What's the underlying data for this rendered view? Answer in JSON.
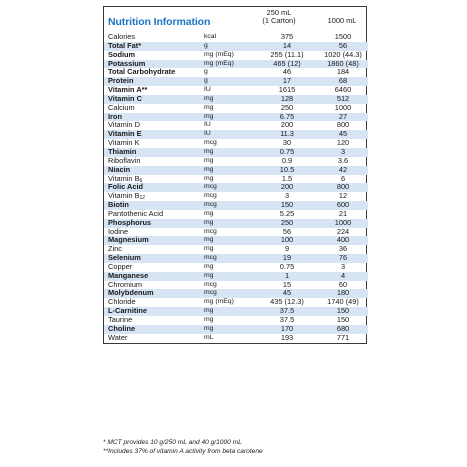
{
  "title": "Nutrition Information",
  "col1_header_line1": "250 mL",
  "col1_header_line2": "(1 Carton)",
  "col2_header": "1000 mL",
  "rows": [
    {
      "name": "Calories",
      "unit": "kcal",
      "v1": "375",
      "v2": "1500",
      "bold": false
    },
    {
      "name": "Total Fat*",
      "unit": "g",
      "v1": "14",
      "v2": "56",
      "bold": true
    },
    {
      "name": "Sodium",
      "unit": "mg (mEq)",
      "v1": "255 (11.1)",
      "v2": "1020 (44.3)",
      "bold": true
    },
    {
      "name": "Potassium",
      "unit": "mg (mEq)",
      "v1": "465 (12)",
      "v2": "1860 (48)",
      "bold": true
    },
    {
      "name": "Total Carbohydrate",
      "unit": "g",
      "v1": "46",
      "v2": "184",
      "bold": true
    },
    {
      "name": "Protein",
      "unit": "g",
      "v1": "17",
      "v2": "68",
      "bold": true
    },
    {
      "name": "Vitamin A**",
      "unit": "IU",
      "v1": "1615",
      "v2": "6460",
      "bold": true
    },
    {
      "name": "Vitamin C",
      "unit": "mg",
      "v1": "128",
      "v2": "512",
      "bold": true
    },
    {
      "name": "Calcium",
      "unit": "mg",
      "v1": "250",
      "v2": "1000",
      "bold": false
    },
    {
      "name": "Iron",
      "unit": "mg",
      "v1": "6.75",
      "v2": "27",
      "bold": true
    },
    {
      "name": "Vitamin D",
      "unit": "IU",
      "v1": "200",
      "v2": "800",
      "bold": false
    },
    {
      "name": "Vitamin E",
      "unit": "IU",
      "v1": "11.3",
      "v2": "45",
      "bold": true
    },
    {
      "name": "Vitamin K",
      "unit": "mcg",
      "v1": "30",
      "v2": "120",
      "bold": false
    },
    {
      "name": "Thiamin",
      "unit": "mg",
      "v1": "0.75",
      "v2": "3",
      "bold": true
    },
    {
      "name": "Riboflavin",
      "unit": "mg",
      "v1": "0.9",
      "v2": "3.6",
      "bold": false
    },
    {
      "name": "Niacin",
      "unit": "mg",
      "v1": "10.5",
      "v2": "42",
      "bold": true
    },
    {
      "name": "Vitamin B",
      "sub": "6",
      "unit": "mg",
      "v1": "1.5",
      "v2": "6",
      "bold": false
    },
    {
      "name": "Folic Acid",
      "unit": "mcg",
      "v1": "200",
      "v2": "800",
      "bold": true
    },
    {
      "name": "Vitamin B",
      "sub": "12",
      "unit": "mcg",
      "v1": "3",
      "v2": "12",
      "bold": false
    },
    {
      "name": "Biotin",
      "unit": "mcg",
      "v1": "150",
      "v2": "600",
      "bold": true
    },
    {
      "name": "Pantothenic Acid",
      "unit": "mg",
      "v1": "5.25",
      "v2": "21",
      "bold": false
    },
    {
      "name": "Phosphorus",
      "unit": "mg",
      "v1": "250",
      "v2": "1000",
      "bold": true
    },
    {
      "name": "Iodine",
      "unit": "mcg",
      "v1": "56",
      "v2": "224",
      "bold": false
    },
    {
      "name": "Magnesium",
      "unit": "mg",
      "v1": "100",
      "v2": "400",
      "bold": true
    },
    {
      "name": "Zinc",
      "unit": "mg",
      "v1": "9",
      "v2": "36",
      "bold": false
    },
    {
      "name": "Selenium",
      "unit": "mcg",
      "v1": "19",
      "v2": "76",
      "bold": true
    },
    {
      "name": "Copper",
      "unit": "mg",
      "v1": "0.75",
      "v2": "3",
      "bold": false
    },
    {
      "name": "Manganese",
      "unit": "mg",
      "v1": "1",
      "v2": "4",
      "bold": true
    },
    {
      "name": "Chromium",
      "unit": "mcg",
      "v1": "15",
      "v2": "60",
      "bold": false
    },
    {
      "name": "Molybdenum",
      "unit": "mcg",
      "v1": "45",
      "v2": "180",
      "bold": true
    },
    {
      "name": "Chloride",
      "unit": "mg (mEq)",
      "v1": "435 (12.3)",
      "v2": "1740 (49)",
      "bold": false
    },
    {
      "name": "L-Carnitine",
      "unit": "mg",
      "v1": "37.5",
      "v2": "150",
      "bold": true
    },
    {
      "name": "Taurine",
      "unit": "mg",
      "v1": "37.5",
      "v2": "150",
      "bold": false
    },
    {
      "name": "Choline",
      "unit": "mg",
      "v1": "170",
      "v2": "680",
      "bold": true
    },
    {
      "name": "Water",
      "unit": "mL",
      "v1": "193",
      "v2": "771",
      "bold": false
    }
  ],
  "footnotes": [
    "* MCT provides 10 g/250 mL and 40 g/1000 mL",
    "**Includes 37% of vitamin A activity from beta carotene"
  ],
  "colors": {
    "title": "#1a75c4",
    "row_shade": "#d6e4f4",
    "border": "#3a3a3a"
  }
}
